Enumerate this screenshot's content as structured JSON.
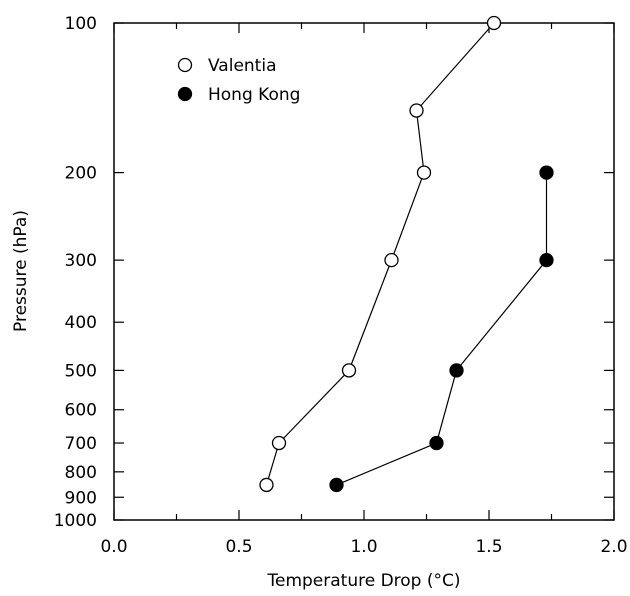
{
  "chart_data": {
    "type": "scatter",
    "xlabel": "Temperature Drop (°C)",
    "ylabel": "Pressure (hPa)",
    "xlim": [
      0.0,
      2.0
    ],
    "ylim": [
      1000,
      100
    ],
    "y_scale": "log",
    "x_ticks": [
      "0.0",
      "0.5",
      "1.0",
      "1.5",
      "2.0"
    ],
    "y_ticks": [
      "100",
      "200",
      "300",
      "400",
      "500",
      "600",
      "700",
      "800",
      "900",
      "1000"
    ],
    "legend_position": "top-left",
    "grid": false,
    "series": [
      {
        "name": "Valentia",
        "marker": "open-circle",
        "points": [
          {
            "x": 1.52,
            "y": 100
          },
          {
            "x": 1.21,
            "y": 150
          },
          {
            "x": 1.24,
            "y": 200
          },
          {
            "x": 1.11,
            "y": 300
          },
          {
            "x": 0.94,
            "y": 500
          },
          {
            "x": 0.66,
            "y": 700
          },
          {
            "x": 0.61,
            "y": 850
          }
        ]
      },
      {
        "name": "Hong Kong",
        "marker": "filled-circle",
        "points": [
          {
            "x": 1.73,
            "y": 200
          },
          {
            "x": 1.73,
            "y": 300
          },
          {
            "x": 1.37,
            "y": 500
          },
          {
            "x": 1.29,
            "y": 700
          },
          {
            "x": 0.89,
            "y": 850
          }
        ]
      }
    ]
  }
}
